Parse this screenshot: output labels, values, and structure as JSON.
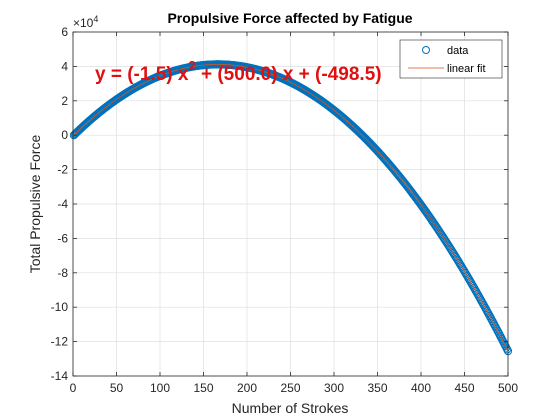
{
  "chart_data": {
    "type": "scatter",
    "title": "Propulsive Force affected by Fatigue",
    "xlabel": "Number of Strokes",
    "ylabel": "Total Propulsive Force",
    "xlim": [
      0,
      500
    ],
    "ylim": [
      -14,
      6
    ],
    "y_exponent_base": "×10",
    "y_exponent_power": "4",
    "x_ticks": [
      0,
      50,
      100,
      150,
      200,
      250,
      300,
      350,
      400,
      450,
      500
    ],
    "y_ticks": [
      6,
      4,
      2,
      0,
      -2,
      -4,
      -6,
      -8,
      -10,
      -12,
      -14
    ],
    "y_tick_labels": [
      "6",
      "4",
      "2",
      "0",
      "-2",
      "-4",
      "-6",
      "-8",
      "-10",
      "-12",
      "-14"
    ],
    "grid": true,
    "legend_position": "top-right",
    "series": [
      {
        "name": "data",
        "marker": "circle",
        "color": "#0072BD",
        "model": {
          "a": -1.5,
          "b": 500.0,
          "c": -498.5
        },
        "x_range": [
          1,
          500
        ]
      },
      {
        "name": "linear fit",
        "marker": "line",
        "color": "#D95319",
        "model": {
          "a": -1.5,
          "b": 500.0,
          "c": -498.5
        },
        "x_range": [
          1,
          500
        ]
      }
    ],
    "annotation": {
      "prefix": "y = (-1.5) x",
      "sup": "2",
      "suffix": " + (500.0) x + (-498.5)",
      "color": "#E01010"
    }
  }
}
